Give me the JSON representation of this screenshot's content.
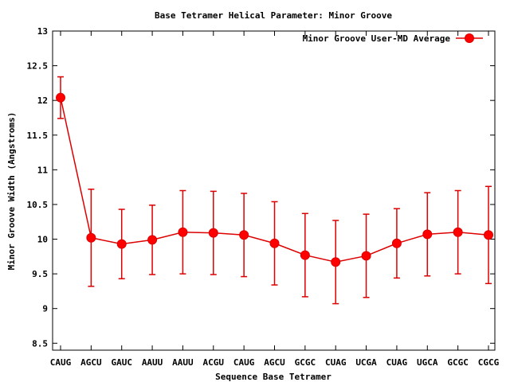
{
  "chart_data": {
    "type": "line",
    "title": "Base Tetramer Helical Parameter: Minor Groove",
    "xlabel": "Sequence Base Tetramer",
    "ylabel": "Minor Groove Width (Angstroms)",
    "ylim": [
      8.4,
      13
    ],
    "yticks": [
      "8.5",
      "9",
      "9.5",
      "10",
      "10.5",
      "11",
      "11.5",
      "12",
      "12.5",
      "13"
    ],
    "categories": [
      "CAUG",
      "AGCU",
      "GAUC",
      "AAUU",
      "AAUU",
      "ACGU",
      "CAUG",
      "AGCU",
      "GCGC",
      "CUAG",
      "UCGA",
      "CUAG",
      "UGCA",
      "GCGC",
      "CGCG"
    ],
    "grid": false,
    "legend_position": "top-right",
    "series": [
      {
        "name": "Minor Groove User-MD Average",
        "color": "#dd0000",
        "values": [
          12.04,
          10.02,
          9.93,
          9.99,
          10.1,
          10.09,
          10.06,
          9.94,
          9.77,
          9.67,
          9.76,
          9.94,
          10.07,
          10.1,
          10.06
        ],
        "error": [
          0.3,
          0.7,
          0.5,
          0.5,
          0.6,
          0.6,
          0.6,
          0.6,
          0.6,
          0.6,
          0.6,
          0.5,
          0.6,
          0.6,
          0.7
        ]
      }
    ]
  }
}
